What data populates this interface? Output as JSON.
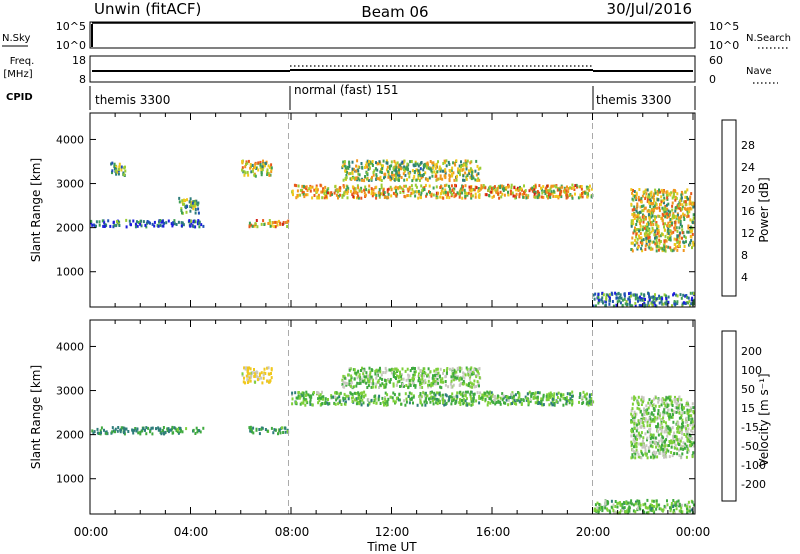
{
  "header": {
    "station": "Unwin (fitACF)",
    "beam": "Beam 06",
    "date": "30/Jul/2016"
  },
  "time_axis": {
    "label": "Time UT",
    "ticks": [
      "00:00",
      "04:00",
      "08:00",
      "12:00",
      "16:00",
      "20:00",
      "00:00"
    ],
    "range_hours": [
      0,
      24
    ]
  },
  "status_panels": {
    "nsky_label": "N.Sky",
    "nsearch_label": "N.Search",
    "noise_ticks_left": [
      "10^5",
      "10^0"
    ],
    "noise_ticks_right": [
      "10^5",
      "10^0"
    ],
    "freq_label": "Freq.",
    "freq_unit": "[MHz]",
    "freq_ticks": [
      "18",
      "8"
    ],
    "nave_label": "Nave",
    "nave_ticks": [
      "60",
      "0"
    ],
    "cpid_label": "CPID",
    "cpid_segments": [
      {
        "label": "themis 3300",
        "start": 0,
        "end": 7.9
      },
      {
        "label": "normal (fast) 151",
        "start": 7.9,
        "end": 20.0
      },
      {
        "label": "themis 3300",
        "start": 20.0,
        "end": 24
      }
    ]
  },
  "power_panel": {
    "ylabel": "Slant Range [km]",
    "yticks": [
      1000,
      2000,
      3000,
      4000
    ],
    "yrange": [
      200,
      4600
    ],
    "colorbar_label": "Power [dB]",
    "colorbar_ticks": [
      "28",
      "24",
      "20",
      "16",
      "12",
      "8",
      "4"
    ],
    "colors": [
      "#1c1cdc",
      "#1e50b4",
      "#2e7d7a",
      "#3f9f54",
      "#9bcc33",
      "#f0c81e",
      "#f0961e",
      "#e8581a",
      "#d21e14"
    ]
  },
  "velocity_panel": {
    "ylabel": "Slant Range [km]",
    "yticks": [
      1000,
      2000,
      3000,
      4000
    ],
    "yrange": [
      200,
      4600
    ],
    "colorbar_label": "Velocity [m s⁻¹]",
    "colorbar_ticks": [
      "200",
      "100",
      "50",
      "15",
      "-15",
      "-50",
      "-100",
      "-200"
    ],
    "colors": [
      "#1c1cdc",
      "#1e50b4",
      "#2e7d7a",
      "#3faa3f",
      "#7ed03a",
      "#c8c8c0",
      "#f0c81e",
      "#f0961e",
      "#e8581a",
      "#d21e14"
    ]
  },
  "chart_data": {
    "type": "heatmap",
    "title": "Unwin (fitACF)  Beam 06  30/Jul/2016",
    "xlabel": "Time UT",
    "ylabel": "Slant Range [km]",
    "xlim": [
      0,
      24
    ],
    "ylim": [
      200,
      4600
    ],
    "series": [
      {
        "name": "Power [dB]",
        "scatter_regions_hours_km": [
          {
            "t": [
              0.8,
              1.4
            ],
            "r": [
              3200,
              3500
            ],
            "value": 12
          },
          {
            "t": [
              0.0,
              4.5
            ],
            "r": [
              2050,
              2200
            ],
            "value": 6
          },
          {
            "t": [
              3.5,
              4.3
            ],
            "r": [
              2350,
              2700
            ],
            "value": 14
          },
          {
            "t": [
              6.0,
              7.2
            ],
            "r": [
              3200,
              3550
            ],
            "value": 18
          },
          {
            "t": [
              6.3,
              7.9
            ],
            "r": [
              2050,
              2200
            ],
            "value": 22
          },
          {
            "t": [
              8.0,
              20.0
            ],
            "r": [
              2700,
              3000
            ],
            "value": 20
          },
          {
            "t": [
              10.0,
              15.5
            ],
            "r": [
              3100,
              3550
            ],
            "value": 16
          },
          {
            "t": [
              20.0,
              24.0
            ],
            "r": [
              250,
              550
            ],
            "value": 8
          },
          {
            "t": [
              21.5,
              24.0
            ],
            "r": [
              1500,
              2900
            ],
            "value": 18
          }
        ]
      },
      {
        "name": "Velocity [m s⁻¹]",
        "scatter_regions_hours_km": [
          {
            "t": [
              0.0,
              4.5
            ],
            "r": [
              2050,
              2200
            ],
            "value": 50
          },
          {
            "t": [
              6.0,
              7.2
            ],
            "r": [
              3200,
              3550
            ],
            "value": -50
          },
          {
            "t": [
              6.3,
              7.9
            ],
            "r": [
              2050,
              2200
            ],
            "value": 50
          },
          {
            "t": [
              8.0,
              20.0
            ],
            "r": [
              2700,
              3000
            ],
            "value": 20
          },
          {
            "t": [
              10.0,
              15.5
            ],
            "r": [
              3100,
              3550
            ],
            "value": 0
          },
          {
            "t": [
              20.0,
              24.0
            ],
            "r": [
              250,
              550
            ],
            "value": 15
          },
          {
            "t": [
              21.5,
              24.0
            ],
            "r": [
              1500,
              2900
            ],
            "value": 0
          }
        ]
      }
    ]
  }
}
